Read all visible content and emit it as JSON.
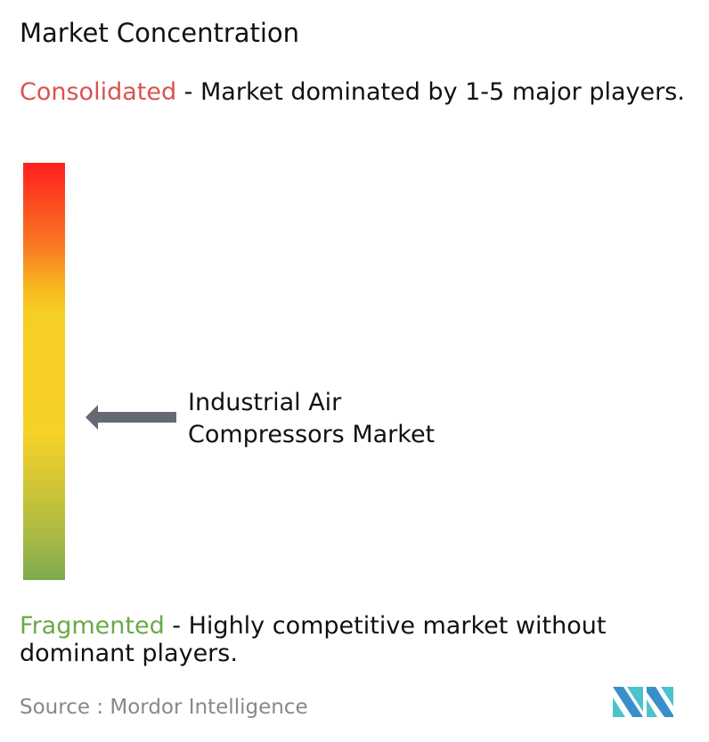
{
  "title": "Market Concentration",
  "consolidated": {
    "label": "Consolidated",
    "text": " - Market dominated by 1-5 major players.",
    "color": "#d9534f"
  },
  "fragmented": {
    "label": "Fragmented",
    "text": " - Highly competitive market without dominant players.",
    "color": "#6aaa45"
  },
  "source": "Source :  Mordor Intelligence",
  "logo": "Mordor Intelligence",
  "chart_data": {
    "type": "gradient-scale",
    "scale_top": "Consolidated",
    "scale_bottom": "Fragmented",
    "marker": {
      "label": "Industrial Air Compressors Market",
      "level_from_bottom": 0.39
    },
    "colors": [
      "#ff1f1f",
      "#f6d126",
      "#7faa50"
    ]
  }
}
